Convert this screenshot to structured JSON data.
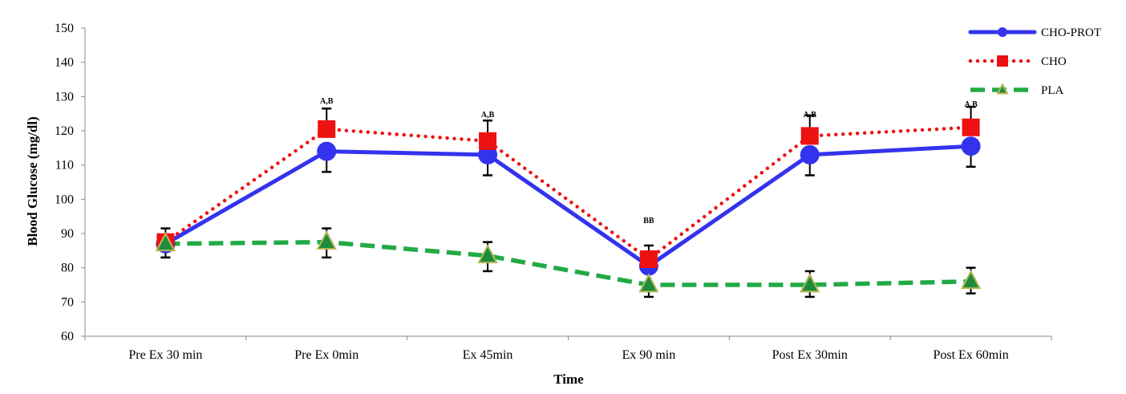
{
  "chart_data": {
    "type": "line",
    "xlabel": "Time",
    "ylabel": "Blood Glucose (mg/dl)",
    "ylim": [
      60,
      150
    ],
    "yticks": [
      60,
      70,
      80,
      90,
      100,
      110,
      120,
      130,
      140,
      150
    ],
    "categories": [
      "Pre Ex 30 min",
      "Pre Ex 0min",
      "Ex 45min",
      "Ex 90 min",
      "Post Ex 30min",
      "Post Ex 60min"
    ],
    "grid": false,
    "legend_position": "top-right",
    "series": [
      {
        "name": "CHO-PROT",
        "color": "#3333ee",
        "style": "solid",
        "marker": "circle",
        "values": [
          87,
          114,
          113,
          80.5,
          113,
          115.5
        ],
        "error_low": [
          4,
          6,
          6,
          2,
          6,
          6
        ]
      },
      {
        "name": "CHO",
        "color": "#ee1111",
        "style": "dotted",
        "marker": "square",
        "values": [
          87.5,
          120.5,
          117,
          82.5,
          118.5,
          121
        ],
        "error_high": [
          4,
          6,
          6,
          4,
          6,
          6
        ]
      },
      {
        "name": "PLA",
        "color": "#22aa44",
        "style": "dashed",
        "marker": "triangle",
        "marker_fill": "#1f8c3c",
        "marker_edge": "#b8b858",
        "values": [
          87,
          87.5,
          83.5,
          75,
          75,
          76
        ],
        "error_low": [
          4,
          4.5,
          4.5,
          3.5,
          3.5,
          3.5
        ],
        "error_high": [
          0,
          4,
          4,
          0,
          4,
          4
        ]
      }
    ],
    "annotations": [
      {
        "category_index": 1,
        "text": "A,B",
        "y": 128
      },
      {
        "category_index": 2,
        "text": "A,B",
        "y": 124
      },
      {
        "category_index": 3,
        "text": "BB",
        "y": 93
      },
      {
        "category_index": 4,
        "text": "A,B",
        "y": 124
      },
      {
        "category_index": 5,
        "text": "A,B",
        "y": 127
      }
    ]
  }
}
